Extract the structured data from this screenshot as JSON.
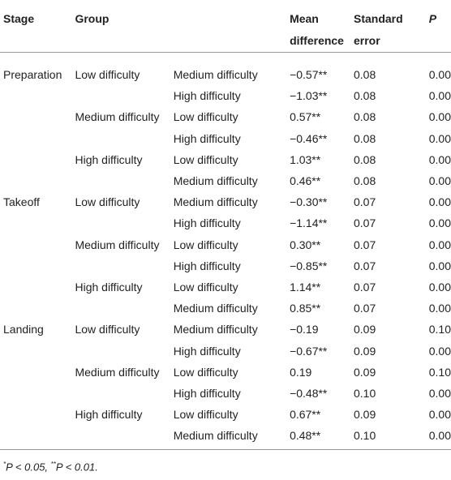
{
  "headers": {
    "stage": "Stage",
    "group": "Group",
    "vs": "",
    "mean_diff_1": "Mean",
    "mean_diff_2": "difference",
    "std_err_1": "Standard",
    "std_err_2": "error",
    "p": "P"
  },
  "rows": [
    {
      "stage": "Preparation",
      "group": "Low difficulty",
      "vs": "Medium difficulty",
      "md": "−0.57**",
      "se": "0.08",
      "p": "0.00"
    },
    {
      "stage": "",
      "group": "",
      "vs": "High difficulty",
      "md": "−1.03**",
      "se": "0.08",
      "p": "0.00"
    },
    {
      "stage": "",
      "group": "Medium difficulty",
      "vs": "Low difficulty",
      "md": "0.57**",
      "se": "0.08",
      "p": "0.00"
    },
    {
      "stage": "",
      "group": "",
      "vs": "High difficulty",
      "md": "−0.46**",
      "se": "0.08",
      "p": "0.00"
    },
    {
      "stage": "",
      "group": "High difficulty",
      "vs": "Low difficulty",
      "md": "1.03**",
      "se": "0.08",
      "p": "0.00"
    },
    {
      "stage": "",
      "group": "",
      "vs": "Medium difficulty",
      "md": "0.46**",
      "se": "0.08",
      "p": "0.00"
    },
    {
      "stage": "Takeoff",
      "group": "Low difficulty",
      "vs": "Medium difficulty",
      "md": "−0.30**",
      "se": "0.07",
      "p": "0.00"
    },
    {
      "stage": "",
      "group": "",
      "vs": "High difficulty",
      "md": "−1.14**",
      "se": "0.07",
      "p": "0.00"
    },
    {
      "stage": "",
      "group": "Medium difficulty",
      "vs": "Low difficulty",
      "md": "0.30**",
      "se": "0.07",
      "p": "0.00"
    },
    {
      "stage": "",
      "group": "",
      "vs": "High difficulty",
      "md": "−0.85**",
      "se": "0.07",
      "p": "0.00"
    },
    {
      "stage": "",
      "group": "High difficulty",
      "vs": "Low difficulty",
      "md": "1.14**",
      "se": "0.07",
      "p": "0.00"
    },
    {
      "stage": "",
      "group": "",
      "vs": "Medium difficulty",
      "md": "0.85**",
      "se": "0.07",
      "p": "0.00"
    },
    {
      "stage": "Landing",
      "group": "Low difficulty",
      "vs": "Medium difficulty",
      "md": "−0.19",
      "se": "0.09",
      "p": "0.10"
    },
    {
      "stage": "",
      "group": "",
      "vs": "High difficulty",
      "md": "−0.67**",
      "se": "0.09",
      "p": "0.00"
    },
    {
      "stage": "",
      "group": "Medium difficulty",
      "vs": "Low difficulty",
      "md": "0.19",
      "se": "0.09",
      "p": "0.10"
    },
    {
      "stage": "",
      "group": "",
      "vs": "High difficulty",
      "md": "−0.48**",
      "se": "0.10",
      "p": "0.00"
    },
    {
      "stage": "",
      "group": "High difficulty",
      "vs": "Low difficulty",
      "md": "0.67**",
      "se": "0.09",
      "p": "0.00"
    },
    {
      "stage": "",
      "group": "",
      "vs": "Medium difficulty",
      "md": "0.48**",
      "se": "0.10",
      "p": "0.00"
    }
  ],
  "footnote": {
    "star1": "*",
    "text1": "P < 0.05, ",
    "star2": "**",
    "text2": "P < 0.01."
  }
}
